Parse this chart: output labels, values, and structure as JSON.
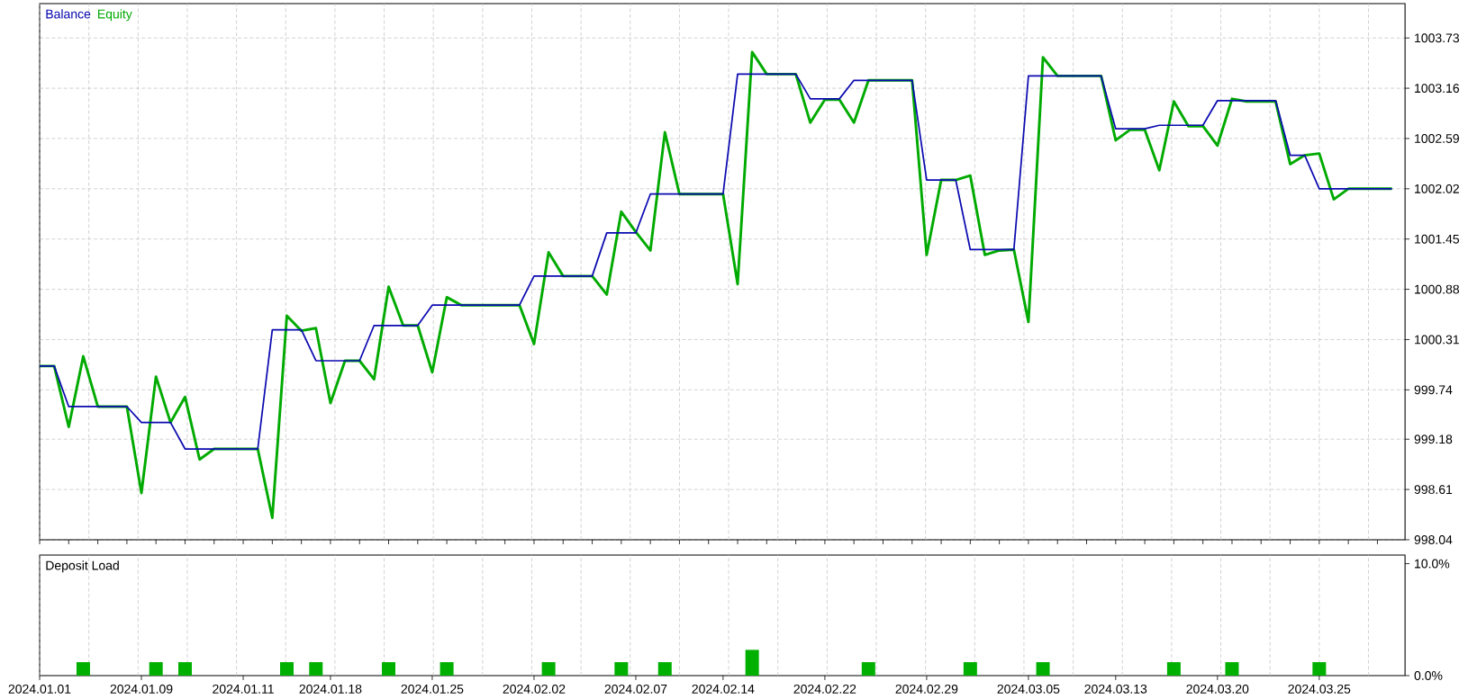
{
  "chart_data": [
    {
      "type": "line",
      "legend": "top left",
      "grid": true,
      "categories": [
        null,
        null,
        null,
        null,
        null,
        null,
        null,
        null,
        null,
        null,
        null,
        null,
        null,
        null,
        null,
        null,
        null,
        null,
        null,
        null,
        null,
        null,
        null,
        null,
        null,
        null,
        null,
        null,
        null,
        null,
        null,
        null,
        null,
        null,
        null,
        null,
        null,
        null,
        null,
        null,
        null,
        null,
        null,
        null,
        null,
        null,
        null,
        null,
        null,
        null,
        null,
        null,
        null,
        null,
        null,
        null,
        null,
        null,
        null,
        null,
        null,
        null,
        null,
        null,
        null,
        null,
        null,
        null,
        null,
        null,
        null,
        null,
        null,
        null,
        null,
        null,
        null,
        null,
        null,
        null,
        null,
        null,
        null,
        null,
        null,
        null,
        null,
        null,
        null,
        null,
        null,
        null,
        null,
        null
      ],
      "series": [
        {
          "name": "Balance",
          "color": "#0a0ab0",
          "values": [
            1000.01,
            1000.01,
            999.55,
            999.55,
            999.55,
            999.55,
            999.55,
            999.37,
            999.37,
            999.37,
            999.07,
            999.07,
            999.07,
            999.07,
            999.07,
            999.07,
            1000.42,
            1000.42,
            1000.42,
            1000.07,
            1000.07,
            1000.07,
            1000.07,
            1000.47,
            1000.47,
            1000.47,
            1000.47,
            1000.7,
            1000.7,
            1000.7,
            1000.7,
            1000.7,
            1000.7,
            1000.7,
            1001.03,
            1001.03,
            1001.03,
            1001.03,
            1001.03,
            1001.52,
            1001.52,
            1001.52,
            1001.96,
            1001.96,
            1001.96,
            1001.96,
            1001.96,
            1001.96,
            1003.32,
            1003.32,
            1003.32,
            1003.32,
            1003.32,
            1003.04,
            1003.04,
            1003.04,
            1003.25,
            1003.25,
            1003.25,
            1003.25,
            1003.25,
            1002.12,
            1002.12,
            1002.12,
            1001.33,
            1001.33,
            1001.33,
            1001.33,
            1003.3,
            1003.3,
            1003.3,
            1003.3,
            1003.3,
            1003.3,
            1002.7,
            1002.7,
            1002.7,
            1002.74,
            1002.74,
            1002.74,
            1002.74,
            1003.02,
            1003.02,
            1003.02,
            1003.02,
            1003.02,
            1002.4,
            1002.4,
            1002.02,
            1002.02,
            1002.02,
            1002.02,
            1002.02,
            1002.02
          ]
        },
        {
          "name": "Equity",
          "color": "#00aa00",
          "values": [
            1000.01,
            1000.01,
            999.32,
            1000.12,
            999.55,
            999.55,
            999.55,
            998.57,
            999.89,
            999.37,
            999.66,
            998.95,
            999.07,
            999.07,
            999.07,
            999.07,
            998.29,
            1000.58,
            1000.41,
            1000.44,
            999.59,
            1000.07,
            1000.07,
            999.86,
            1000.91,
            1000.47,
            1000.47,
            999.94,
            1000.79,
            1000.7,
            1000.7,
            1000.7,
            1000.7,
            1000.7,
            1000.26,
            1001.3,
            1001.03,
            1001.03,
            1001.03,
            1000.82,
            1001.76,
            1001.53,
            1001.32,
            1002.66,
            1001.96,
            1001.96,
            1001.96,
            1001.96,
            1000.94,
            1003.57,
            1003.32,
            1003.32,
            1003.32,
            1002.77,
            1003.03,
            1003.03,
            1002.77,
            1003.25,
            1003.25,
            1003.25,
            1003.25,
            1001.27,
            1002.12,
            1002.12,
            1002.17,
            1001.27,
            1001.32,
            1001.33,
            1000.51,
            1003.51,
            1003.3,
            1003.3,
            1003.3,
            1003.3,
            1002.57,
            1002.69,
            1002.69,
            1002.23,
            1003.01,
            1002.73,
            1002.73,
            1002.51,
            1003.04,
            1003.01,
            1003.01,
            1003.01,
            1002.3,
            1002.4,
            1002.42,
            1001.9,
            1002.02,
            1002.02,
            1002.02,
            1002.02
          ]
        }
      ],
      "ylim": [
        998.04,
        1004.12
      ],
      "yticks": [
        998.04,
        998.61,
        999.18,
        999.74,
        1000.31,
        1000.88,
        1001.45,
        1002.02,
        1002.59,
        1003.16,
        1003.73
      ]
    },
    {
      "type": "bar",
      "title": "Deposit Load",
      "grid": "x",
      "color": "#00b000",
      "categories": [
        "2024.01.01",
        null,
        null,
        null,
        null,
        null,
        null,
        "2024.01.09",
        null,
        null,
        null,
        null,
        null,
        null,
        "2024.01.11",
        null,
        null,
        null,
        null,
        null,
        "2024.01.18",
        null,
        null,
        null,
        null,
        null,
        null,
        "2024.01.25",
        null,
        null,
        null,
        null,
        null,
        null,
        "2024.02.02",
        null,
        null,
        null,
        null,
        null,
        null,
        "2024.02.07",
        null,
        null,
        null,
        null,
        null,
        "2024.02.14",
        null,
        null,
        null,
        null,
        null,
        null,
        "2024.02.22",
        null,
        null,
        null,
        null,
        null,
        null,
        "2024.02.29",
        null,
        null,
        null,
        null,
        null,
        null,
        "2024.03.05",
        null,
        null,
        null,
        null,
        null,
        "2024.03.13",
        null,
        null,
        null,
        null,
        null,
        null,
        "2024.03.20",
        null,
        null,
        null,
        null,
        null,
        null,
        "2024.03.25",
        null,
        null,
        null,
        null,
        null
      ],
      "values": [
        null,
        null,
        null,
        1.2,
        null,
        null,
        null,
        null,
        1.2,
        null,
        1.2,
        null,
        null,
        null,
        null,
        null,
        null,
        1.2,
        null,
        1.2,
        null,
        null,
        null,
        null,
        1.2,
        null,
        null,
        null,
        1.2,
        null,
        null,
        null,
        null,
        null,
        null,
        1.2,
        null,
        null,
        null,
        null,
        1.2,
        null,
        null,
        1.2,
        null,
        null,
        null,
        null,
        null,
        2.3,
        null,
        null,
        null,
        null,
        null,
        null,
        null,
        1.2,
        null,
        null,
        null,
        null,
        null,
        null,
        1.2,
        null,
        null,
        null,
        null,
        1.2,
        null,
        null,
        null,
        null,
        null,
        null,
        null,
        null,
        1.2,
        null,
        null,
        null,
        1.2,
        null,
        null,
        null,
        null,
        null,
        1.2,
        null,
        null,
        null,
        null,
        null
      ],
      "ylim": [
        0,
        10.77
      ],
      "yticks": [
        {
          "value": 0,
          "label": "0.0%"
        },
        {
          "value": 10,
          "label": "10.0%"
        }
      ]
    }
  ]
}
